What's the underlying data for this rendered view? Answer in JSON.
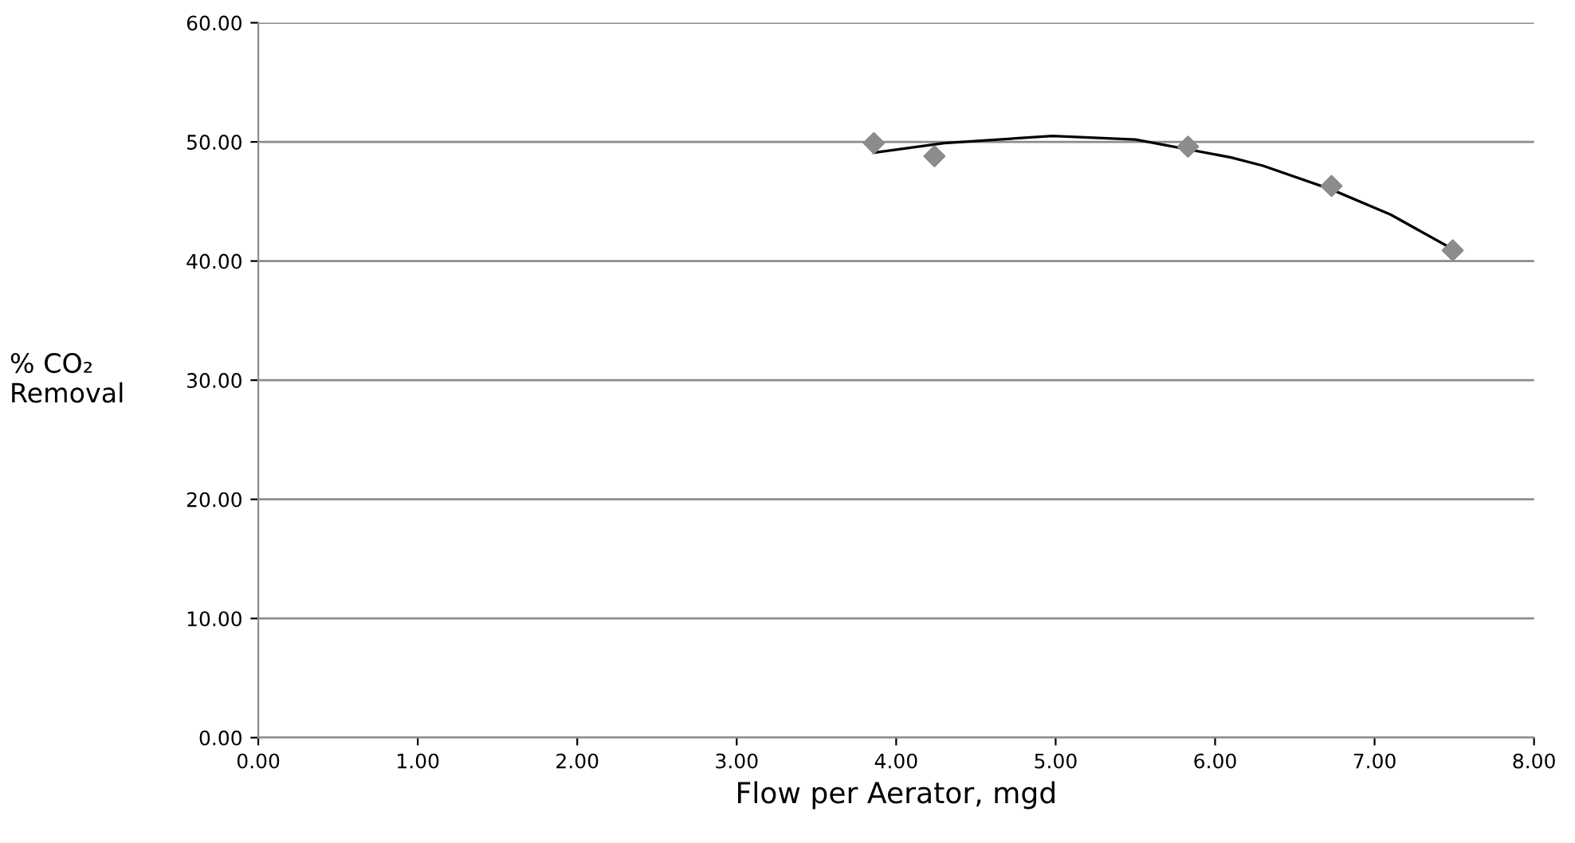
{
  "chart_data": {
    "type": "scatter",
    "xlabel": "Flow per Aerator, mgd",
    "ylabel": "% CO₂\nRemoval",
    "xlim": [
      0,
      8
    ],
    "ylim": [
      0,
      60
    ],
    "xticks": [
      {
        "value": 0,
        "label": "0.00"
      },
      {
        "value": 1,
        "label": "1.00"
      },
      {
        "value": 2,
        "label": "2.00"
      },
      {
        "value": 3,
        "label": "3.00"
      },
      {
        "value": 4,
        "label": "4.00"
      },
      {
        "value": 5,
        "label": "5.00"
      },
      {
        "value": 6,
        "label": "6.00"
      },
      {
        "value": 7,
        "label": "7.00"
      },
      {
        "value": 8,
        "label": "8.00"
      }
    ],
    "yticks": [
      {
        "value": 0,
        "label": "0.00"
      },
      {
        "value": 10,
        "label": "10.00"
      },
      {
        "value": 20,
        "label": "20.00"
      },
      {
        "value": 30,
        "label": "30.00"
      },
      {
        "value": 40,
        "label": "40.00"
      },
      {
        "value": 50,
        "label": "50.00"
      },
      {
        "value": 60,
        "label": "60.00"
      }
    ],
    "grid": "y",
    "legend": false,
    "series": [
      {
        "color": "#8c8c8c",
        "marker": "diamond",
        "x": [
          3.86,
          4.24,
          5.83,
          6.73,
          7.49
        ],
        "values": [
          49.9,
          48.8,
          49.6,
          46.3,
          40.9
        ]
      },
      {
        "type": "line",
        "color": "#000000",
        "marker": "none",
        "line_style": "solid",
        "x": [
          3.86,
          4.3,
          4.98,
          5.5,
          6.1,
          6.3,
          6.73,
          7.1,
          7.49
        ],
        "values": [
          49.1,
          49.9,
          50.5,
          50.2,
          48.7,
          48.0,
          46.0,
          43.9,
          41.0
        ]
      }
    ]
  }
}
